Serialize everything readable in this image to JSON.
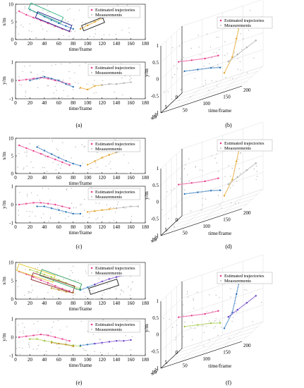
{
  "colors": {
    "traj_a": [
      "#e8408e",
      "#2a73b8",
      "#e0a020",
      "#b0b0b0"
    ],
    "traj_c": [
      "#e8408e",
      "#2a73b8",
      "#e0a020",
      "#b0b0b0"
    ],
    "traj_e": [
      "#e8408e",
      "#a0c840",
      "#2a73b8",
      "#6a3cc8",
      "#c09020"
    ],
    "measurement": "#b8b8b8"
  },
  "chart_data": [
    {
      "id": "a-top",
      "type": "scatter",
      "caption": "(a)",
      "xlabel": "time/frame",
      "ylabel": "x/m",
      "xlim": [
        0,
        180
      ],
      "ylim": [
        0,
        10
      ],
      "xticks": [
        "0",
        "20",
        "40",
        "60",
        "80",
        "100",
        "120",
        "140",
        "160",
        "180"
      ],
      "yticks": [
        "0",
        "5",
        "10"
      ],
      "legend": [
        "Estimated trajectories",
        "Measurements"
      ],
      "series": [
        {
          "x": [
            5,
            15,
            25,
            35,
            45,
            55,
            65,
            75
          ],
          "y": [
            8,
            7,
            6.2,
            5.4,
            4.6,
            3.8,
            3,
            2.3
          ]
        },
        {
          "x": [
            20,
            30,
            40,
            50,
            60,
            70,
            80
          ],
          "y": [
            8.5,
            7.5,
            6.5,
            5.5,
            4.6,
            3.8,
            3
          ]
        },
        {
          "x": [
            90,
            100,
            110,
            120
          ],
          "y": [
            3,
            4,
            5,
            6
          ]
        },
        {
          "x": [
            120,
            130,
            140,
            150,
            160
          ],
          "y": [
            6,
            6.5,
            7,
            7.5,
            8
          ]
        }
      ]
    },
    {
      "id": "a-bottom",
      "type": "scatter",
      "xlabel": "time/frame",
      "ylabel": "y/m",
      "xlim": [
        0,
        180
      ],
      "ylim": [
        -1,
        1
      ],
      "xticks": [
        "0",
        "20",
        "40",
        "60",
        "80",
        "100",
        "120",
        "140",
        "160",
        "180"
      ],
      "yticks": [
        "-1",
        "0",
        "1"
      ],
      "legend": [
        "Estimated trajectories",
        "Measurements"
      ],
      "series": [
        {
          "x": [
            5,
            15,
            25,
            35,
            45,
            55,
            65,
            75
          ],
          "y": [
            0,
            0.05,
            0.1,
            0.15,
            0.1,
            0,
            -0.1,
            -0.2
          ]
        },
        {
          "x": [
            20,
            30,
            40,
            50,
            60,
            70,
            80
          ],
          "y": [
            0,
            0.1,
            0.2,
            0.1,
            0,
            -0.2,
            -0.35
          ]
        },
        {
          "x": [
            90,
            100,
            110,
            120
          ],
          "y": [
            -0.4,
            -0.5,
            -0.3,
            -0.25
          ]
        },
        {
          "x": [
            120,
            130,
            140,
            150,
            160
          ],
          "y": [
            -0.25,
            -0.2,
            -0.2,
            -0.15,
            -0.1
          ]
        }
      ]
    },
    {
      "id": "b",
      "type": "scatter",
      "caption": "(b)",
      "xlabel": "x/m",
      "ylabel": "y/m",
      "zlabel": "time/frame",
      "legend": [
        "Estimated trajectories",
        "Measurements"
      ]
    },
    {
      "id": "c-top",
      "type": "scatter",
      "caption": "(c)",
      "xlabel": "time/frame",
      "ylabel": "x/m",
      "xlim": [
        0,
        180
      ],
      "ylim": [
        0,
        10
      ],
      "xticks": [
        "0",
        "20",
        "40",
        "60",
        "80",
        "100",
        "120",
        "140",
        "160",
        "180"
      ],
      "yticks": [
        "0",
        "5",
        "10"
      ],
      "legend": [
        "Estimated trajectories",
        "Measurements"
      ],
      "series": [
        {
          "x": [
            5,
            15,
            25,
            35,
            45,
            55,
            65,
            75
          ],
          "y": [
            8,
            7.2,
            6.4,
            5.6,
            4.8,
            4,
            3.2,
            2.4
          ]
        },
        {
          "x": [
            30,
            40,
            50,
            60,
            70,
            80,
            90
          ],
          "y": [
            7.5,
            6.5,
            5.5,
            4.5,
            3.6,
            2.8,
            2.2
          ]
        },
        {
          "x": [
            100,
            110,
            120,
            130,
            140
          ],
          "y": [
            2.5,
            3.5,
            4.5,
            5.3,
            6
          ]
        },
        {
          "x": [
            140,
            150,
            160,
            170
          ],
          "y": [
            6,
            6.5,
            7,
            7.3
          ]
        }
      ]
    },
    {
      "id": "c-bottom",
      "type": "scatter",
      "xlabel": "time/frame",
      "ylabel": "y/m",
      "xlim": [
        0,
        180
      ],
      "ylim": [
        -1,
        1
      ],
      "xticks": [
        "0",
        "20",
        "40",
        "60",
        "80",
        "100",
        "120",
        "140",
        "160",
        "180"
      ],
      "yticks": [
        "-1",
        "0",
        "1"
      ],
      "legend": [
        "Estimated trajectories",
        "Measurements"
      ],
      "series": [
        {
          "x": [
            5,
            15,
            25,
            35,
            45,
            55,
            65,
            75
          ],
          "y": [
            0,
            0.05,
            0.1,
            0.1,
            0.05,
            0,
            -0.1,
            -0.2
          ]
        },
        {
          "x": [
            30,
            40,
            50,
            60,
            70,
            80,
            90
          ],
          "y": [
            -0.1,
            -0.1,
            -0.2,
            -0.3,
            -0.4,
            -0.5,
            -0.5
          ]
        },
        {
          "x": [
            100,
            110,
            120,
            130,
            140
          ],
          "y": [
            -0.4,
            -0.35,
            -0.3,
            -0.25,
            -0.2
          ]
        },
        {
          "x": [
            140,
            150,
            160,
            170
          ],
          "y": [
            -0.2,
            -0.15,
            -0.1,
            -0.1
          ]
        }
      ]
    },
    {
      "id": "d",
      "type": "scatter",
      "caption": "(d)",
      "xlabel": "x/m",
      "ylabel": "y/m",
      "zlabel": "time/frame",
      "legend": [
        "Estimated trajectories",
        "Measurements"
      ]
    },
    {
      "id": "e-top",
      "type": "scatter",
      "caption": "(e)",
      "xlabel": "time/frame",
      "ylabel": "x/m",
      "xlim": [
        0,
        180
      ],
      "ylim": [
        0,
        10
      ],
      "xticks": [
        "0",
        "20",
        "40",
        "60",
        "80",
        "100",
        "120",
        "140",
        "160",
        "180"
      ],
      "yticks": [
        "0",
        "5",
        "10"
      ],
      "legend": [
        "Estimated trajectories",
        "Measurements"
      ],
      "series": [
        {
          "x": [
            5,
            15,
            25,
            35,
            45,
            55,
            65,
            75
          ],
          "y": [
            7.5,
            6.8,
            6,
            5.2,
            4.4,
            3.6,
            2.8,
            2.2
          ]
        },
        {
          "x": [
            20,
            30,
            40,
            50,
            60,
            70,
            80,
            90
          ],
          "y": [
            8,
            7.4,
            6.7,
            6,
            5.2,
            4.4,
            3.6,
            2.8
          ]
        },
        {
          "x": [
            90,
            100,
            110
          ],
          "y": [
            2.5,
            3.2,
            4
          ]
        },
        {
          "x": [
            110,
            120,
            130,
            140,
            150,
            160
          ],
          "y": [
            4,
            4.8,
            5.5,
            6,
            6.5,
            7
          ]
        },
        {
          "x": [
            50,
            60,
            70,
            80
          ],
          "y": [
            3,
            2.5,
            2,
            1.8
          ]
        }
      ]
    },
    {
      "id": "e-bottom",
      "type": "scatter",
      "xlabel": "time/frame",
      "ylabel": "y/m",
      "xlim": [
        0,
        180
      ],
      "ylim": [
        -1,
        1
      ],
      "xticks": [
        "0",
        "20",
        "40",
        "60",
        "80",
        "100",
        "120",
        "140",
        "160",
        "180"
      ],
      "yticks": [
        "-1",
        "0",
        "1"
      ],
      "legend": [
        "Estimated trajectories",
        "Measurements"
      ],
      "series": [
        {
          "x": [
            5,
            15,
            25,
            35,
            45,
            55,
            65,
            75
          ],
          "y": [
            0,
            0.05,
            0.1,
            0.15,
            0.1,
            0,
            -0.1,
            -0.2
          ]
        },
        {
          "x": [
            20,
            30,
            40,
            50,
            60,
            70,
            80,
            90
          ],
          "y": [
            -0.1,
            -0.1,
            -0.2,
            -0.25,
            -0.35,
            -0.4,
            -0.45,
            -0.5
          ]
        },
        {
          "x": [
            90,
            100,
            110
          ],
          "y": [
            -0.45,
            -0.4,
            -0.35
          ]
        },
        {
          "x": [
            110,
            120,
            130,
            140,
            150,
            160
          ],
          "y": [
            -0.35,
            -0.3,
            -0.25,
            -0.2,
            -0.2,
            -0.15
          ]
        },
        {
          "x": [
            50,
            60,
            70,
            80
          ],
          "y": [
            -0.3,
            -0.35,
            -0.4,
            -0.5
          ]
        }
      ]
    },
    {
      "id": "f",
      "type": "scatter",
      "caption": "(f)",
      "xlabel": "x/m",
      "ylabel": "y/m",
      "zlabel": "time/frame",
      "legend": [
        "Estimated trajectories",
        "Measurements"
      ]
    }
  ]
}
